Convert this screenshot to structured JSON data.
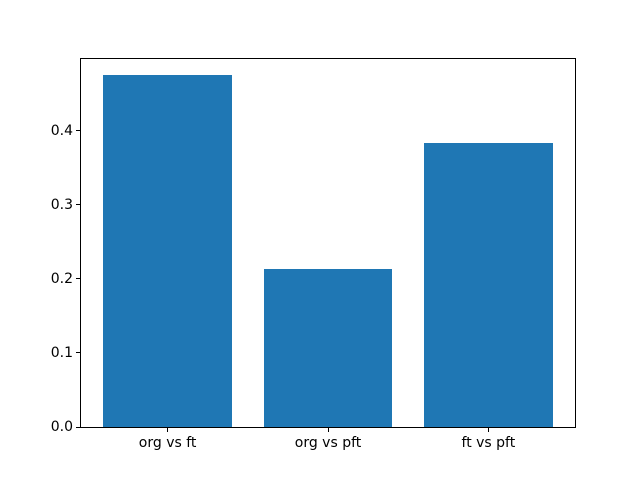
{
  "chart_data": {
    "type": "bar",
    "title": "",
    "xlabel": "",
    "ylabel": "",
    "categories": [
      "org vs ft",
      "org vs pft",
      "ft vs pft"
    ],
    "values": [
      0.475,
      0.213,
      0.383
    ],
    "yticks": [
      0.0,
      0.1,
      0.2,
      0.3,
      0.4
    ],
    "ytick_labels": [
      "0.0",
      "0.1",
      "0.2",
      "0.3",
      "0.4"
    ],
    "ylim": [
      0,
      0.497
    ],
    "bar_width_fraction": 0.8,
    "grid": false,
    "legend": null,
    "colors": {
      "bar": "#1f77b4",
      "spine": "#000000",
      "text": "#000000",
      "background": "#ffffff"
    }
  }
}
